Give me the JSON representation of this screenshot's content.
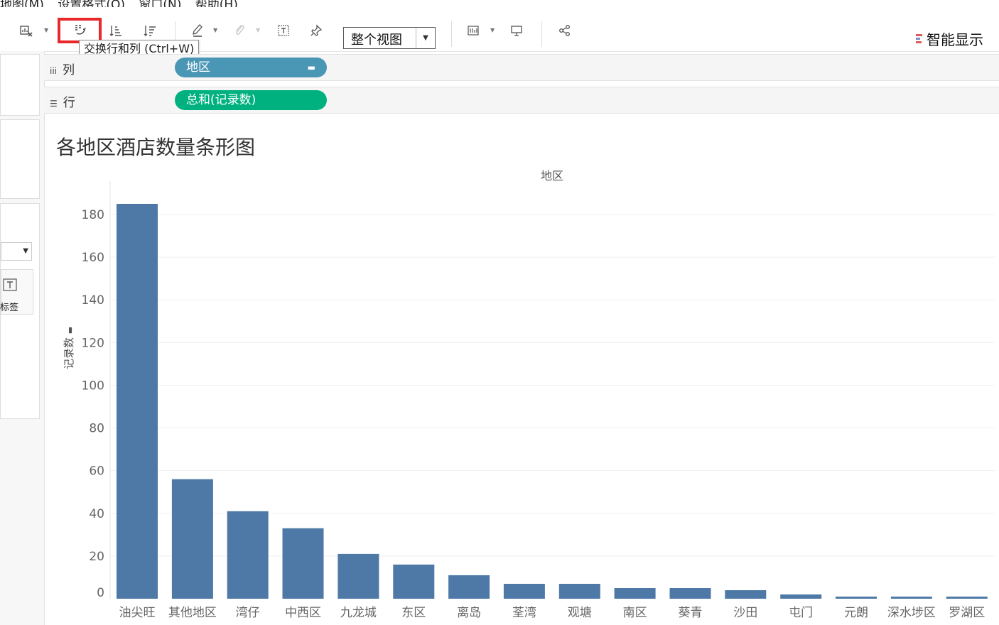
{
  "menu": [
    "地图(M)",
    "设置格式(O)",
    "窗口(N)",
    "帮助(H)"
  ],
  "toolbar": {
    "tooltip": "交换行和列 (Ctrl+W)",
    "view_select": "整个视图",
    "show_me": "智能显示",
    "icons": [
      "clear-sheet-icon",
      "swap-icon",
      "sort-ascending-icon",
      "sort-descending-icon",
      "highlight-icon",
      "group-icon",
      "show-labels-icon",
      "pin-icon",
      "cards-icon",
      "presentation-icon",
      "share-icon"
    ]
  },
  "left_pane": {
    "marks_label": "标签"
  },
  "shelves": {
    "columns": {
      "label": "列",
      "pill": "地区",
      "pill_color": "#4a96b5"
    },
    "rows": {
      "label": "行",
      "pill": "总和(记录数)",
      "pill_color": "#00b180"
    }
  },
  "chart_data": {
    "type": "bar",
    "title": "各地区酒店数量条形图",
    "xlabel": "地区",
    "ylabel": "记录数",
    "categories": [
      "油尖旺",
      "其他地区",
      "湾仔",
      "中西区",
      "九龙城",
      "东区",
      "离岛",
      "荃湾",
      "观塘",
      "南区",
      "葵青",
      "沙田",
      "屯门",
      "元朗",
      "深水埗区",
      "罗湖区"
    ],
    "values": [
      185,
      56,
      41,
      33,
      21,
      16,
      11,
      7,
      7,
      5,
      5,
      4,
      2,
      1,
      1,
      1
    ],
    "ylim": [
      0,
      185
    ],
    "yticks": [
      0,
      20,
      40,
      60,
      80,
      100,
      120,
      140,
      160,
      180
    ],
    "bar_color": "#4e79a7",
    "grid": true
  }
}
